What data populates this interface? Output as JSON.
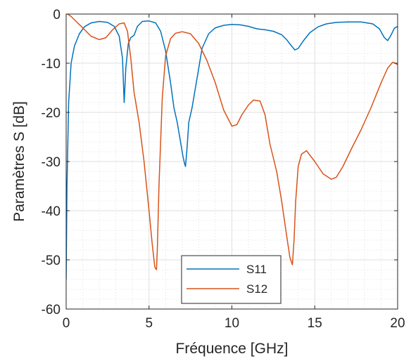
{
  "chart_data": {
    "type": "line",
    "title": "",
    "xlabel": "Fréquence [GHz]",
    "ylabel": "Paramètres S [dB]",
    "xlim": [
      0,
      20
    ],
    "ylim": [
      -60,
      0
    ],
    "xticks": [
      0,
      5,
      10,
      15,
      20
    ],
    "yticks": [
      0,
      -10,
      -20,
      -30,
      -40,
      -50,
      -60
    ],
    "xtick_labels": [
      "0",
      "5",
      "10",
      "15",
      "20"
    ],
    "ytick_labels": [
      "0",
      "-10",
      "-20",
      "-30",
      "-40",
      "-50",
      "-60"
    ],
    "grid": true,
    "minor_grid": true,
    "legend_position": "bottom-center",
    "series": [
      {
        "name": "S11",
        "color": "#0072bd",
        "x": [
          0,
          0.05,
          0.15,
          0.3,
          0.5,
          0.8,
          1.1,
          1.5,
          2,
          2.5,
          2.9,
          3.2,
          3.4,
          3.5,
          3.6,
          3.75,
          3.9,
          4.1,
          4.3,
          4.6,
          5.0,
          5.4,
          5.7,
          6.0,
          6.3,
          6.5,
          6.7,
          6.9,
          7.05,
          7.15,
          7.2,
          7.3,
          7.4,
          7.6,
          7.9,
          8.2,
          8.6,
          9.0,
          9.5,
          10,
          10.5,
          11,
          11.5,
          12,
          12.5,
          13,
          13.3,
          13.6,
          13.8,
          14.0,
          14.3,
          14.7,
          15.2,
          15.7,
          16.3,
          17,
          17.8,
          18.5,
          18.9,
          19.2,
          19.4,
          19.6,
          19.8,
          20
        ],
        "y": [
          -54,
          -35,
          -18,
          -10,
          -6.5,
          -4,
          -2.6,
          -1.8,
          -1.5,
          -1.7,
          -2.5,
          -4.5,
          -9,
          -18,
          -11,
          -6,
          -4.8,
          -4.3,
          -2.5,
          -1.5,
          -1.4,
          -1.8,
          -3.5,
          -7.5,
          -14,
          -19,
          -22,
          -26,
          -29,
          -30.5,
          -31,
          -27,
          -22,
          -19,
          -13,
          -7,
          -4,
          -2.8,
          -2.3,
          -2.1,
          -2.2,
          -2.5,
          -3.0,
          -3.2,
          -3.5,
          -4.2,
          -5.2,
          -6.5,
          -7.3,
          -7.0,
          -5.5,
          -3.8,
          -2.6,
          -2.0,
          -1.7,
          -1.6,
          -1.6,
          -2.0,
          -3.0,
          -4.8,
          -5.4,
          -4.3,
          -2.9,
          -2.5
        ]
      },
      {
        "name": "S12",
        "color": "#d95319",
        "x": [
          0,
          0.1,
          0.3,
          0.6,
          1.0,
          1.5,
          2.0,
          2.4,
          2.8,
          3.2,
          3.5,
          3.7,
          3.9,
          4.1,
          4.4,
          4.7,
          5.0,
          5.2,
          5.35,
          5.45,
          5.5,
          5.6,
          5.8,
          6.0,
          6.3,
          6.6,
          7.0,
          7.5,
          8.0,
          8.5,
          9.0,
          9.5,
          10.0,
          10.3,
          10.6,
          11.0,
          11.3,
          11.7,
          12.0,
          12.3,
          12.7,
          13.0,
          13.3,
          13.5,
          13.65,
          13.75,
          13.85,
          14.0,
          14.2,
          14.5,
          15.0,
          15.5,
          16.0,
          16.3,
          16.7,
          17.2,
          17.8,
          18.4,
          19.0,
          19.4,
          19.7,
          19.85,
          20.0
        ],
        "y": [
          0,
          0,
          -0.5,
          -1.5,
          -2.8,
          -4.5,
          -5.2,
          -4.8,
          -3.2,
          -2.0,
          -1.8,
          -3.5,
          -9,
          -16,
          -22,
          -30,
          -40,
          -47,
          -51.5,
          -52,
          -48,
          -35,
          -17,
          -8.5,
          -5,
          -3.9,
          -3.6,
          -4.0,
          -6.0,
          -9.5,
          -14.0,
          -19.5,
          -22.8,
          -22.5,
          -20.5,
          -18.5,
          -17.5,
          -17.7,
          -20.5,
          -26.5,
          -32.0,
          -38.0,
          -45.0,
          -49.5,
          -51.0,
          -46.0,
          -38.0,
          -31.0,
          -28.5,
          -27.8,
          -30.0,
          -32.5,
          -33.6,
          -33.2,
          -31.0,
          -27.5,
          -23.5,
          -19.0,
          -14.0,
          -11.0,
          -9.8,
          -10.0,
          -10.3
        ]
      }
    ]
  }
}
